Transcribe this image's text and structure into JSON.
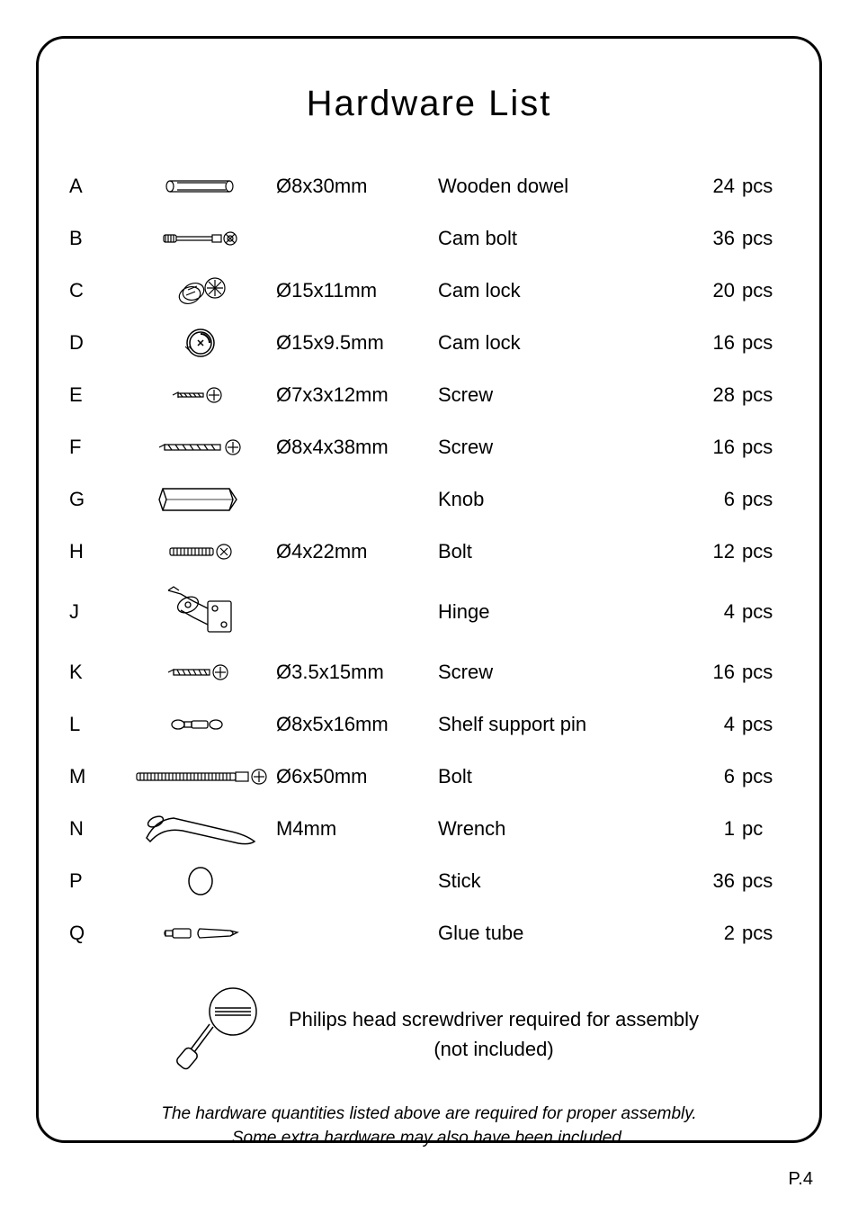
{
  "title": "Hardware  List",
  "items": [
    {
      "letter": "A",
      "icon": "dowel",
      "size": "Ø8x30mm",
      "name": "Wooden dowel",
      "qty": "24",
      "unit": "pcs"
    },
    {
      "letter": "B",
      "icon": "cam-bolt",
      "size": "",
      "name": "Cam bolt",
      "qty": "36",
      "unit": "pcs"
    },
    {
      "letter": "C",
      "icon": "cam-lock-a",
      "size": "Ø15x11mm",
      "name": "Cam lock",
      "qty": "20",
      "unit": "pcs"
    },
    {
      "letter": "D",
      "icon": "cam-lock-b",
      "size": "Ø15x9.5mm",
      "name": "Cam lock",
      "qty": "16",
      "unit": "pcs"
    },
    {
      "letter": "E",
      "icon": "screw-short",
      "size": "Ø7x3x12mm",
      "name": "Screw",
      "qty": "28",
      "unit": "pcs"
    },
    {
      "letter": "F",
      "icon": "screw-long",
      "size": "Ø8x4x38mm",
      "name": "Screw",
      "qty": "16",
      "unit": "pcs"
    },
    {
      "letter": "G",
      "icon": "knob",
      "size": "",
      "name": "Knob",
      "qty": "6",
      "unit": "pcs"
    },
    {
      "letter": "H",
      "icon": "bolt-short",
      "size": "Ø4x22mm",
      "name": "Bolt",
      "qty": "12",
      "unit": "pcs"
    },
    {
      "letter": "J",
      "icon": "hinge",
      "size": "",
      "name": "Hinge",
      "qty": "4",
      "unit": "pcs"
    },
    {
      "letter": "K",
      "icon": "screw-k",
      "size": "Ø3.5x15mm",
      "name": "Screw",
      "qty": "16",
      "unit": "pcs"
    },
    {
      "letter": "L",
      "icon": "shelf-pin",
      "size": "Ø8x5x16mm",
      "name": "Shelf support pin",
      "qty": "4",
      "unit": "pcs"
    },
    {
      "letter": "M",
      "icon": "bolt-long",
      "size": "Ø6x50mm",
      "name": "Bolt",
      "qty": "6",
      "unit": "pcs"
    },
    {
      "letter": "N",
      "icon": "wrench",
      "size": "M4mm",
      "name": "Wrench",
      "qty": "1",
      "unit": "pc"
    },
    {
      "letter": "P",
      "icon": "stick",
      "size": "",
      "name": "Stick",
      "qty": "36",
      "unit": "pcs"
    },
    {
      "letter": "Q",
      "icon": "glue",
      "size": "",
      "name": "Glue tube",
      "qty": "2",
      "unit": "pcs"
    }
  ],
  "note": {
    "line1": "Philips head screwdriver required for assembly",
    "line2": "(not included)"
  },
  "disclaimer": {
    "line1": "The hardware quantities listed above are required for proper assembly.",
    "line2": "Some extra hardware may also have been included."
  },
  "page_number": "P.4",
  "colors": {
    "stroke": "#000000",
    "bg": "#ffffff"
  }
}
